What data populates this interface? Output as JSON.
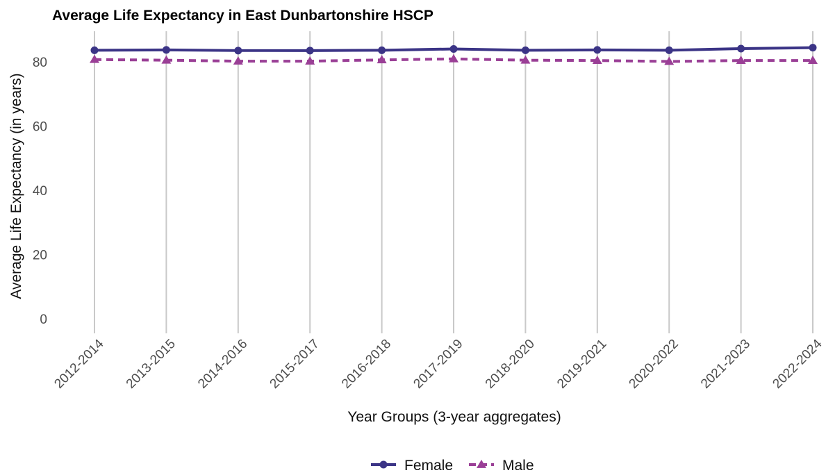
{
  "chart_data": {
    "type": "line",
    "title": "Average Life Expectancy in East Dunbartonshire HSCP",
    "xlabel": "Year Groups (3-year aggregates)",
    "ylabel": "Average Life Expectancy (in years)",
    "categories": [
      "2012-2014",
      "2013-2015",
      "2014-2016",
      "2015-2017",
      "2016-2018",
      "2017-2019",
      "2018-2020",
      "2019-2021",
      "2020-2022",
      "2021-2023",
      "2022-2024"
    ],
    "ylim": [
      0,
      88
    ],
    "yticks": [
      0,
      20,
      40,
      60,
      80
    ],
    "grid": "vertical lines at categories",
    "legend_position": "bottom",
    "series": [
      {
        "name": "Female",
        "color": "#3b3486",
        "line_style": "solid",
        "marker": "circle",
        "values": [
          83.6,
          83.7,
          83.5,
          83.5,
          83.6,
          84.0,
          83.6,
          83.7,
          83.6,
          84.1,
          84.4
        ]
      },
      {
        "name": "Male",
        "color": "#9a3f96",
        "line_style": "dashed",
        "marker": "triangle",
        "values": [
          80.7,
          80.5,
          80.2,
          80.2,
          80.6,
          80.9,
          80.5,
          80.4,
          80.1,
          80.4,
          80.4
        ]
      }
    ]
  }
}
